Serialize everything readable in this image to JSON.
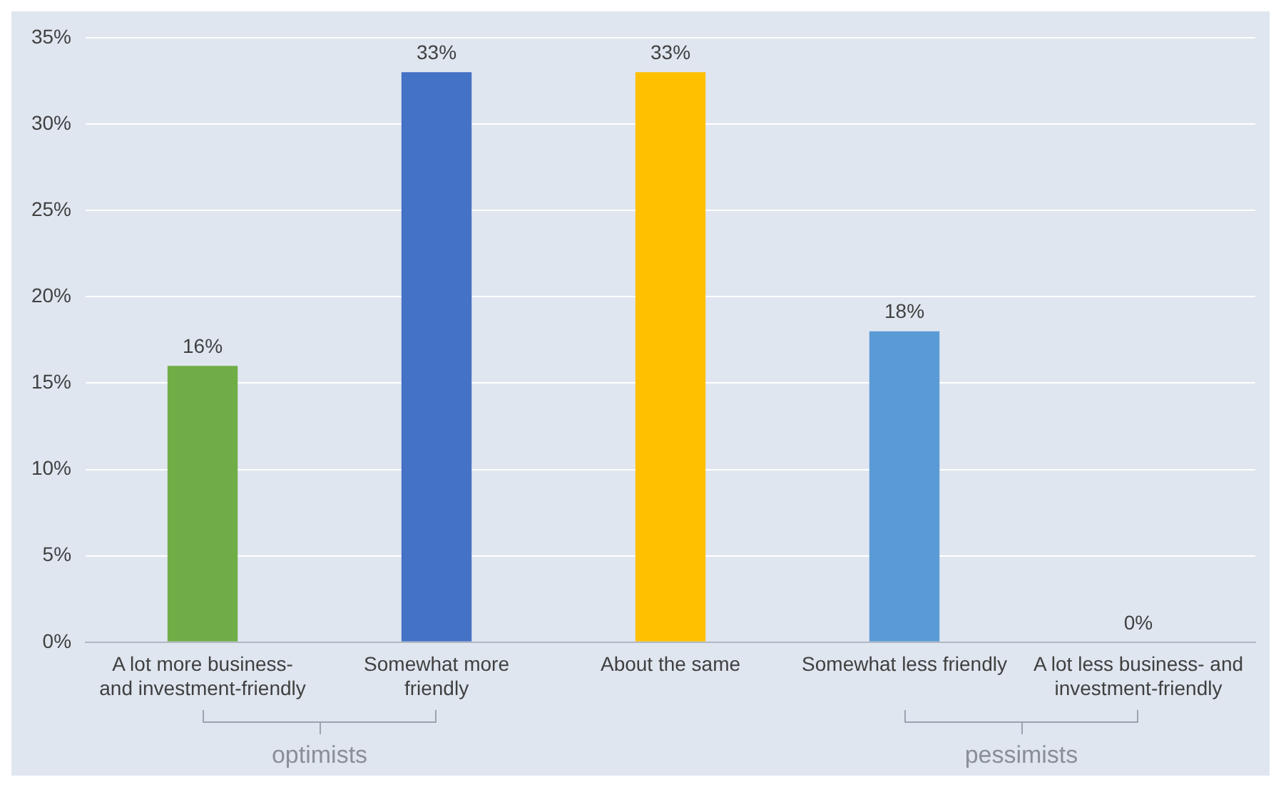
{
  "chart_data": {
    "type": "bar",
    "categories": [
      "A lot more business-\nand investment-friendly",
      "Somewhat more\nfriendly",
      "About the same",
      "Somewhat less friendly",
      "A lot less business- and\ninvestment-friendly"
    ],
    "values": [
      16,
      33,
      33,
      18,
      0
    ],
    "colors": [
      "#70ad47",
      "#4472c4",
      "#ffc000",
      "#5b9bd5",
      "#a5a5a5"
    ],
    "value_labels": [
      "16%",
      "33%",
      "33%",
      "18%",
      "0%"
    ],
    "ylim": [
      0,
      35
    ],
    "yticks": [
      {
        "value": 0,
        "label": "0%"
      },
      {
        "value": 5,
        "label": "5%"
      },
      {
        "value": 10,
        "label": "10%"
      },
      {
        "value": 15,
        "label": "15%"
      },
      {
        "value": 20,
        "label": "20%"
      },
      {
        "value": 25,
        "label": "25%"
      },
      {
        "value": 30,
        "label": "30%"
      },
      {
        "value": 35,
        "label": "35%"
      }
    ],
    "grid": "y",
    "legend": false,
    "annotations": [
      "optimists",
      "pessimists"
    ]
  }
}
